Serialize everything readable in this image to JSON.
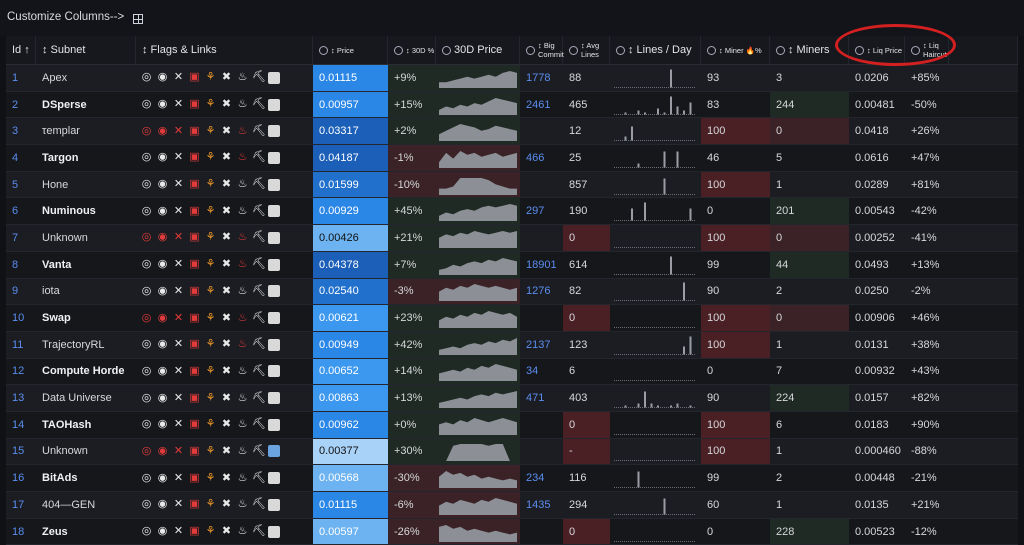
{
  "toolbar": {
    "customize_label": "Customize Columns-->",
    "grid_icon": "grid-icon"
  },
  "columns": [
    {
      "key": "id",
      "label": "Id ↑"
    },
    {
      "key": "subnet",
      "label": "↕ Subnet"
    },
    {
      "key": "flags",
      "label": "↕ Flags & Links"
    },
    {
      "key": "price",
      "label": "↕ Price"
    },
    {
      "key": "chg30",
      "label": "↕ 30D %"
    },
    {
      "key": "spark30",
      "label": "30D Price"
    },
    {
      "key": "big",
      "label": "↕ Big Commit"
    },
    {
      "key": "avg",
      "label": "↕ Avg Lines"
    },
    {
      "key": "lpd",
      "label": "↕ Lines / Day"
    },
    {
      "key": "miner_pct",
      "label": "↕ Miner 🔥%"
    },
    {
      "key": "miners",
      "label": "↕ Miners"
    },
    {
      "key": "liq",
      "label": "↕ Liq Price"
    },
    {
      "key": "hair",
      "label": "↕ Liq Haircut"
    }
  ],
  "rows": [
    {
      "id": "1",
      "name": "Apex",
      "bold": false,
      "price": "0.01115",
      "chg": "+9%",
      "big": "1778",
      "avg": "88",
      "mpct": "93",
      "miners": "3",
      "liq": "0.0206",
      "hair": "+85%",
      "spark": [
        3,
        3,
        4,
        5,
        6,
        5,
        6,
        7,
        6,
        8,
        9,
        8
      ],
      "lines": [
        0,
        0,
        0,
        0,
        0,
        0,
        0,
        0,
        9,
        0,
        0,
        0
      ]
    },
    {
      "id": "2",
      "name": "DSperse",
      "bold": true,
      "price": "0.00957",
      "chg": "+15%",
      "big": "2461",
      "avg": "465",
      "mpct": "83",
      "miners": "244",
      "liq": "0.00481",
      "hair": "-50%",
      "spark": [
        3,
        5,
        4,
        6,
        5,
        7,
        6,
        8,
        10,
        9,
        8,
        7
      ],
      "lines": [
        0,
        1,
        0,
        2,
        1,
        0,
        3,
        1,
        9,
        4,
        2,
        6
      ]
    },
    {
      "id": "3",
      "name": "τemplar",
      "bold": false,
      "price": "0.03317",
      "chg": "+2%",
      "big": "",
      "avg": "12",
      "mpct": "100",
      "miners": "0",
      "liq": "0.0418",
      "hair": "+26%",
      "spark": [
        4,
        6,
        8,
        10,
        9,
        8,
        6,
        7,
        9,
        8,
        7,
        6
      ],
      "lines": [
        0,
        2,
        7,
        0,
        0,
        0,
        0,
        0,
        0,
        0,
        0,
        0
      ]
    },
    {
      "id": "4",
      "name": "Targon",
      "bold": true,
      "price": "0.04187",
      "chg": "-1%",
      "big": "466",
      "avg": "25",
      "mpct": "46",
      "miners": "5",
      "liq": "0.0616",
      "hair": "+47%",
      "spark": [
        3,
        8,
        5,
        9,
        7,
        8,
        6,
        7,
        8,
        6,
        7,
        8
      ],
      "lines": [
        0,
        0,
        0,
        2,
        0,
        0,
        0,
        8,
        0,
        8,
        0,
        0
      ]
    },
    {
      "id": "5",
      "name": "Hone",
      "bold": false,
      "price": "0.01599",
      "chg": "-10%",
      "big": "",
      "avg": "857",
      "mpct": "100",
      "miners": "1",
      "liq": "0.0289",
      "hair": "+81%",
      "spark": [
        3,
        3,
        4,
        8,
        8,
        8,
        8,
        7,
        5,
        4,
        3,
        3
      ],
      "lines": [
        0,
        0,
        0,
        0,
        0,
        0,
        0,
        8,
        0,
        0,
        0,
        0
      ]
    },
    {
      "id": "6",
      "name": "Numinous",
      "bold": true,
      "price": "0.00929",
      "chg": "+45%",
      "big": "297",
      "avg": "190",
      "mpct": "0",
      "miners": "201",
      "liq": "0.00543",
      "hair": "-42%",
      "spark": [
        3,
        5,
        4,
        6,
        7,
        6,
        8,
        9,
        8,
        9,
        10,
        9
      ],
      "lines": [
        0,
        0,
        6,
        0,
        9,
        0,
        0,
        0,
        0,
        0,
        0,
        6
      ]
    },
    {
      "id": "7",
      "name": "Unknown",
      "bold": false,
      "price": "0.00426",
      "chg": "+21%",
      "big": "",
      "avg": "0",
      "mpct": "100",
      "miners": "0",
      "liq": "0.00252",
      "hair": "-41%",
      "spark": [
        6,
        8,
        7,
        9,
        8,
        10,
        9,
        8,
        9,
        10,
        9,
        10
      ],
      "lines": [
        0,
        0,
        0,
        0,
        0,
        0,
        0,
        0,
        0,
        0,
        0,
        0
      ]
    },
    {
      "id": "8",
      "name": "Vanta",
      "bold": true,
      "price": "0.04378",
      "chg": "+7%",
      "big": "18901",
      "avg": "614",
      "mpct": "99",
      "miners": "44",
      "liq": "0.0493",
      "hair": "+13%",
      "spark": [
        3,
        4,
        6,
        5,
        7,
        8,
        7,
        9,
        8,
        10,
        9,
        8
      ],
      "lines": [
        0,
        0,
        0,
        0,
        0,
        0,
        0,
        0,
        9,
        0,
        0,
        0
      ]
    },
    {
      "id": "9",
      "name": "iota",
      "bold": false,
      "price": "0.02540",
      "chg": "-3%",
      "big": "1276",
      "avg": "82",
      "mpct": "90",
      "miners": "2",
      "liq": "0.0250",
      "hair": "-2%",
      "spark": [
        5,
        7,
        6,
        8,
        7,
        9,
        8,
        7,
        8,
        7,
        6,
        7
      ],
      "lines": [
        0,
        0,
        0,
        0,
        0,
        0,
        0,
        0,
        0,
        0,
        9,
        0
      ]
    },
    {
      "id": "10",
      "name": "Swap",
      "bold": true,
      "price": "0.00621",
      "chg": "+23%",
      "big": "",
      "avg": "0",
      "mpct": "100",
      "miners": "0",
      "liq": "0.00906",
      "hair": "+46%",
      "spark": [
        4,
        6,
        5,
        7,
        6,
        8,
        7,
        9,
        8,
        7,
        8,
        6
      ],
      "lines": [
        0,
        0,
        0,
        0,
        0,
        0,
        0,
        0,
        0,
        0,
        0,
        0
      ]
    },
    {
      "id": "11",
      "name": "TrajectoryRL",
      "bold": false,
      "price": "0.00949",
      "chg": "+42%",
      "big": "2137",
      "avg": "123",
      "mpct": "100",
      "miners": "1",
      "liq": "0.0131",
      "hair": "+38%",
      "spark": [
        3,
        4,
        5,
        4,
        6,
        7,
        6,
        8,
        7,
        9,
        8,
        10
      ],
      "lines": [
        0,
        0,
        0,
        0,
        0,
        0,
        0,
        0,
        0,
        0,
        4,
        9
      ]
    },
    {
      "id": "12",
      "name": "Compute Horde",
      "bold": true,
      "price": "0.00652",
      "chg": "+14%",
      "big": "34",
      "avg": "6",
      "mpct": "0",
      "miners": "7",
      "liq": "0.00932",
      "hair": "+43%",
      "spark": [
        4,
        5,
        6,
        5,
        7,
        6,
        8,
        7,
        9,
        8,
        7,
        6
      ],
      "lines": [
        0,
        0,
        0,
        0,
        0,
        0,
        0,
        0,
        0,
        0,
        0,
        0
      ]
    },
    {
      "id": "13",
      "name": "Data Universe",
      "bold": false,
      "price": "0.00863",
      "chg": "+13%",
      "big": "471",
      "avg": "403",
      "mpct": "90",
      "miners": "224",
      "liq": "0.0157",
      "hair": "+82%",
      "spark": [
        3,
        4,
        5,
        6,
        5,
        7,
        8,
        7,
        9,
        8,
        9,
        10
      ],
      "lines": [
        0,
        1,
        0,
        2,
        8,
        2,
        1,
        0,
        1,
        2,
        0,
        1
      ]
    },
    {
      "id": "14",
      "name": "TAOHash",
      "bold": true,
      "price": "0.00962",
      "chg": "+0%",
      "big": "",
      "avg": "0",
      "mpct": "100",
      "miners": "6",
      "liq": "0.0183",
      "hair": "+90%",
      "spark": [
        5,
        6,
        5,
        7,
        6,
        8,
        7,
        6,
        7,
        8,
        7,
        6
      ],
      "lines": [
        0,
        0,
        0,
        0,
        0,
        0,
        0,
        0,
        0,
        0,
        0,
        0
      ]
    },
    {
      "id": "15",
      "name": "Unknown",
      "bold": false,
      "price": "0.00377",
      "chg": "+30%",
      "big": "",
      "avg": "-",
      "mpct": "100",
      "miners": "1",
      "liq": "0.000460",
      "hair": "-88%",
      "spark": [
        0,
        0,
        9,
        10,
        10,
        10,
        10,
        9,
        10,
        10,
        0,
        0
      ],
      "lines": [
        0,
        0,
        0,
        0,
        0,
        0,
        0,
        0,
        0,
        0,
        0,
        0
      ]
    },
    {
      "id": "16",
      "name": "BitAds",
      "bold": true,
      "price": "0.00568",
      "chg": "-30%",
      "big": "234",
      "avg": "116",
      "mpct": "99",
      "miners": "2",
      "liq": "0.00448",
      "hair": "-21%",
      "spark": [
        6,
        9,
        7,
        8,
        6,
        7,
        5,
        6,
        5,
        4,
        5,
        4
      ],
      "lines": [
        0,
        0,
        0,
        8,
        0,
        0,
        0,
        0,
        0,
        0,
        0,
        0
      ]
    },
    {
      "id": "17",
      "name": "404—GEN",
      "bold": false,
      "price": "0.01115",
      "chg": "-6%",
      "big": "1435",
      "avg": "294",
      "mpct": "60",
      "miners": "1",
      "liq": "0.0135",
      "hair": "+21%",
      "spark": [
        5,
        7,
        6,
        8,
        7,
        6,
        8,
        7,
        9,
        8,
        7,
        6
      ],
      "lines": [
        0,
        0,
        0,
        0,
        0,
        0,
        0,
        8,
        0,
        0,
        0,
        0
      ]
    },
    {
      "id": "18",
      "name": "Zeus",
      "bold": true,
      "price": "0.00597",
      "chg": "-26%",
      "big": "",
      "avg": "0",
      "mpct": "0",
      "miners": "228",
      "liq": "0.00523",
      "hair": "-12%",
      "spark": [
        8,
        9,
        7,
        8,
        6,
        7,
        6,
        5,
        6,
        5,
        4,
        5
      ],
      "lines": [
        0,
        0,
        0,
        0,
        0,
        0,
        0,
        0,
        0,
        0,
        0,
        0
      ]
    }
  ],
  "colors": {
    "accent": "#5b8def",
    "annotation": "#d42020"
  }
}
